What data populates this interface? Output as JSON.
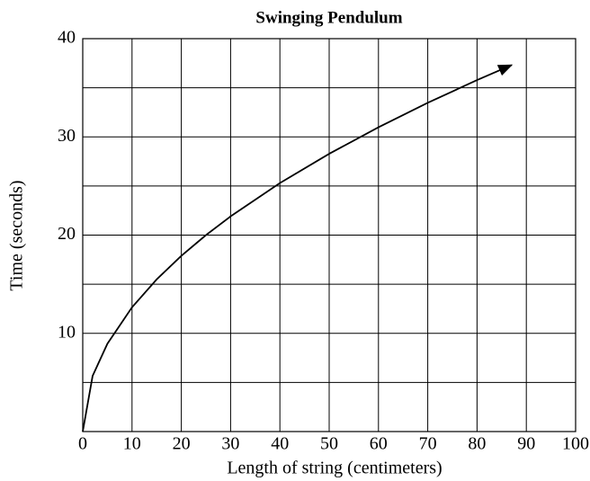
{
  "chart_data": {
    "type": "line",
    "title": "Swinging Pendulum",
    "xlabel": "Length of string (centimeters)",
    "ylabel": "Time (seconds)",
    "x": [
      0,
      2,
      5,
      10,
      15,
      20,
      25,
      30,
      40,
      50,
      60,
      70,
      80,
      87
    ],
    "series": [
      {
        "color": "#000000",
        "values": [
          0,
          5.66,
          8.94,
          12.65,
          15.49,
          17.89,
          20,
          21.91,
          25.3,
          28.28,
          30.98,
          33.47,
          35.78,
          37.31
        ]
      }
    ],
    "xlim": [
      0,
      100
    ],
    "ylim": [
      0,
      40
    ],
    "xticks": [
      0,
      10,
      20,
      30,
      40,
      50,
      60,
      70,
      80,
      90,
      100
    ],
    "yticks": [
      10,
      20,
      30,
      40
    ],
    "ygrid": [
      5,
      10,
      15,
      20,
      25,
      30,
      35
    ],
    "grid": true,
    "arrow_end": true
  }
}
